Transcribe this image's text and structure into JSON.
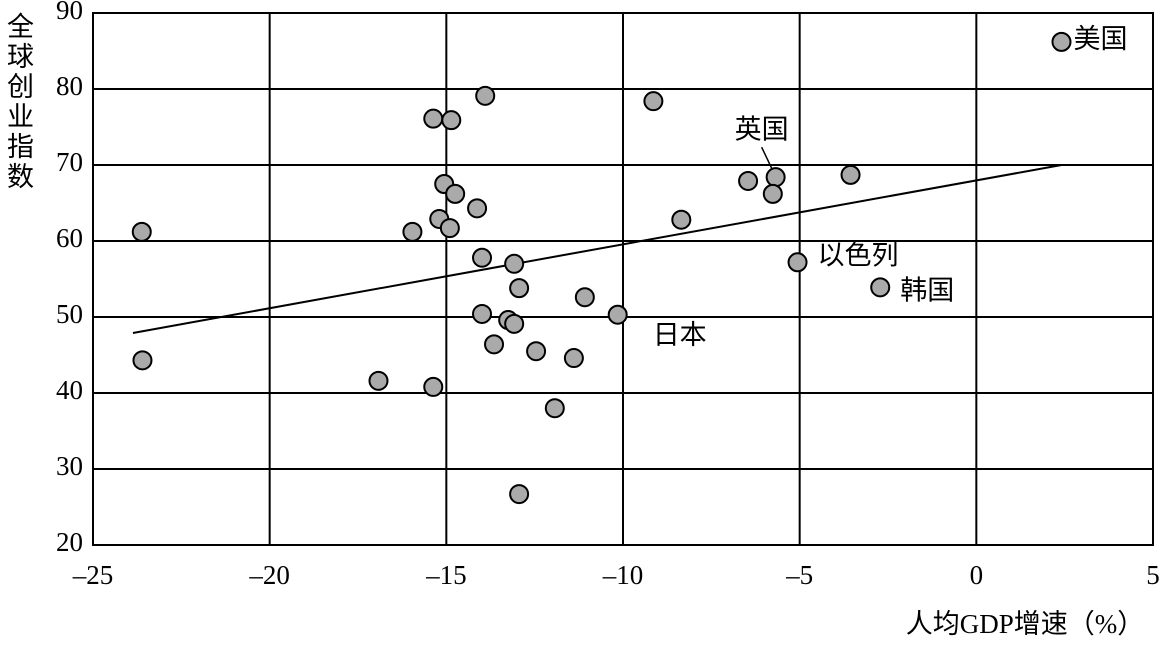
{
  "chart_data": {
    "type": "scatter",
    "x_label": "人均GDP增速（%）",
    "y_label": "全球创业指数",
    "xlim": [
      -25,
      5
    ],
    "ylim": [
      20,
      90
    ],
    "xticks": [
      {
        "value": -25,
        "label": "–25"
      },
      {
        "value": -20,
        "label": "–20"
      },
      {
        "value": -15,
        "label": "–15"
      },
      {
        "value": -10,
        "label": "–10"
      },
      {
        "value": -5,
        "label": "–5"
      },
      0,
      5
    ],
    "yticks": [
      20,
      30,
      40,
      50,
      60,
      70,
      80,
      90
    ],
    "grid": true,
    "color": "#aaaaaa",
    "x": [
      2.41,
      -23.62,
      -23.6,
      -13.9,
      -15.37,
      -14.86,
      -9.14,
      -15.06,
      -14.75,
      -14.13,
      -15.2,
      -14.9,
      -15.96,
      -13.99,
      -13.08,
      -12.94,
      -11.08,
      -13.99,
      -13.25,
      -13.08,
      -10.15,
      -13.65,
      -12.46,
      -11.39,
      -16.92,
      -15.37,
      -11.93,
      -12.94,
      -8.35,
      -6.46,
      -5.68,
      -5.76,
      -3.56,
      -5.06,
      -2.72
    ],
    "y": [
      86.2,
      61.2,
      44.3,
      79.1,
      76.1,
      75.9,
      78.4,
      67.5,
      66.2,
      64.3,
      62.9,
      61.7,
      61.2,
      57.8,
      57.0,
      53.8,
      52.6,
      50.4,
      49.6,
      49.1,
      50.3,
      46.4,
      45.5,
      44.6,
      41.6,
      40.8,
      38.0,
      26.7,
      62.8,
      67.9,
      68.4,
      66.2,
      68.7,
      57.2,
      53.9
    ],
    "labels": [
      "美国",
      null,
      null,
      null,
      null,
      null,
      null,
      null,
      null,
      null,
      null,
      null,
      null,
      null,
      null,
      null,
      null,
      null,
      null,
      null,
      "日本",
      null,
      null,
      null,
      null,
      null,
      null,
      null,
      null,
      null,
      "英国",
      null,
      null,
      "以色列",
      "韩国"
    ],
    "trendline": {
      "x": [
        -23.87,
        2.41
      ],
      "y": [
        47.9,
        70.0
      ]
    }
  }
}
